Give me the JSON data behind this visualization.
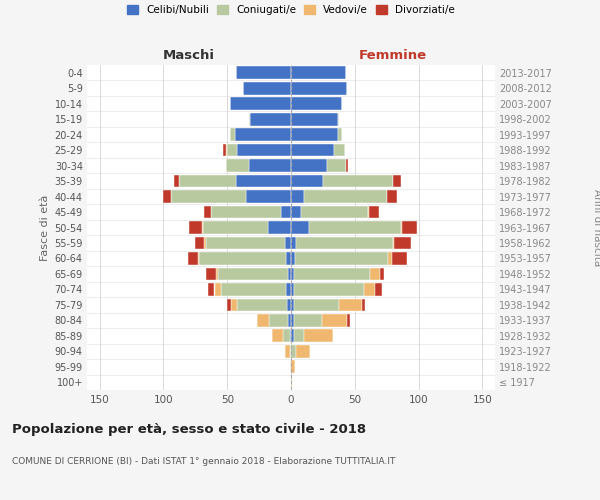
{
  "age_groups": [
    "100+",
    "95-99",
    "90-94",
    "85-89",
    "80-84",
    "75-79",
    "70-74",
    "65-69",
    "60-64",
    "55-59",
    "50-54",
    "45-49",
    "40-44",
    "35-39",
    "30-34",
    "25-29",
    "20-24",
    "15-19",
    "10-14",
    "5-9",
    "0-4"
  ],
  "birth_years": [
    "≤ 1917",
    "1918-1922",
    "1923-1927",
    "1928-1932",
    "1933-1937",
    "1938-1942",
    "1943-1947",
    "1948-1952",
    "1953-1957",
    "1958-1962",
    "1963-1967",
    "1968-1972",
    "1973-1977",
    "1978-1982",
    "1983-1987",
    "1988-1992",
    "1993-1997",
    "1998-2002",
    "2003-2007",
    "2008-2012",
    "2013-2017"
  ],
  "colors": {
    "celibi": "#4472c4",
    "coniugati": "#b8c9a0",
    "vedovi": "#f0b86e",
    "divorziati": "#c0392b"
  },
  "maschi": {
    "celibi": [
      0,
      0,
      0,
      1,
      2,
      3,
      4,
      2,
      4,
      5,
      18,
      8,
      35,
      43,
      33,
      42,
      44,
      32,
      48,
      38,
      43
    ],
    "coniugati": [
      0,
      0,
      1,
      5,
      15,
      39,
      51,
      55,
      68,
      62,
      51,
      55,
      59,
      45,
      18,
      8,
      4,
      1,
      0,
      0,
      0
    ],
    "vedovi": [
      0,
      1,
      4,
      9,
      10,
      5,
      5,
      2,
      1,
      1,
      1,
      0,
      0,
      0,
      0,
      1,
      0,
      0,
      0,
      0,
      0
    ],
    "divorziati": [
      0,
      0,
      0,
      0,
      0,
      3,
      5,
      8,
      8,
      7,
      10,
      5,
      6,
      4,
      0,
      2,
      0,
      0,
      0,
      0,
      0
    ]
  },
  "femmine": {
    "celibi": [
      0,
      0,
      0,
      2,
      2,
      2,
      2,
      2,
      3,
      4,
      14,
      8,
      10,
      25,
      28,
      34,
      37,
      37,
      40,
      44,
      43
    ],
    "coniugati": [
      0,
      0,
      4,
      8,
      22,
      36,
      55,
      60,
      73,
      76,
      72,
      52,
      65,
      55,
      15,
      8,
      3,
      1,
      0,
      0,
      0
    ],
    "vedovi": [
      1,
      3,
      11,
      23,
      20,
      18,
      9,
      8,
      3,
      1,
      1,
      1,
      0,
      0,
      0,
      0,
      0,
      0,
      0,
      0,
      0
    ],
    "divorziati": [
      0,
      0,
      0,
      0,
      2,
      2,
      5,
      3,
      12,
      13,
      12,
      8,
      8,
      6,
      2,
      0,
      0,
      0,
      0,
      0,
      0
    ]
  },
  "title": "Popolazione per età, sesso e stato civile - 2018",
  "subtitle": "COMUNE DI CERRIONE (BI) - Dati ISTAT 1° gennaio 2018 - Elaborazione TUTTITALIA.IT",
  "xlabel_left": "Maschi",
  "xlabel_right": "Femmine",
  "ylabel_left": "Fasce di età",
  "ylabel_right": "Anni di nascita",
  "xlim": 160,
  "bg_color": "#f5f5f5",
  "plot_bg": "#ffffff",
  "legend_labels": [
    "Celibi/Nubili",
    "Coniugati/e",
    "Vedovi/e",
    "Divorziati/e"
  ]
}
